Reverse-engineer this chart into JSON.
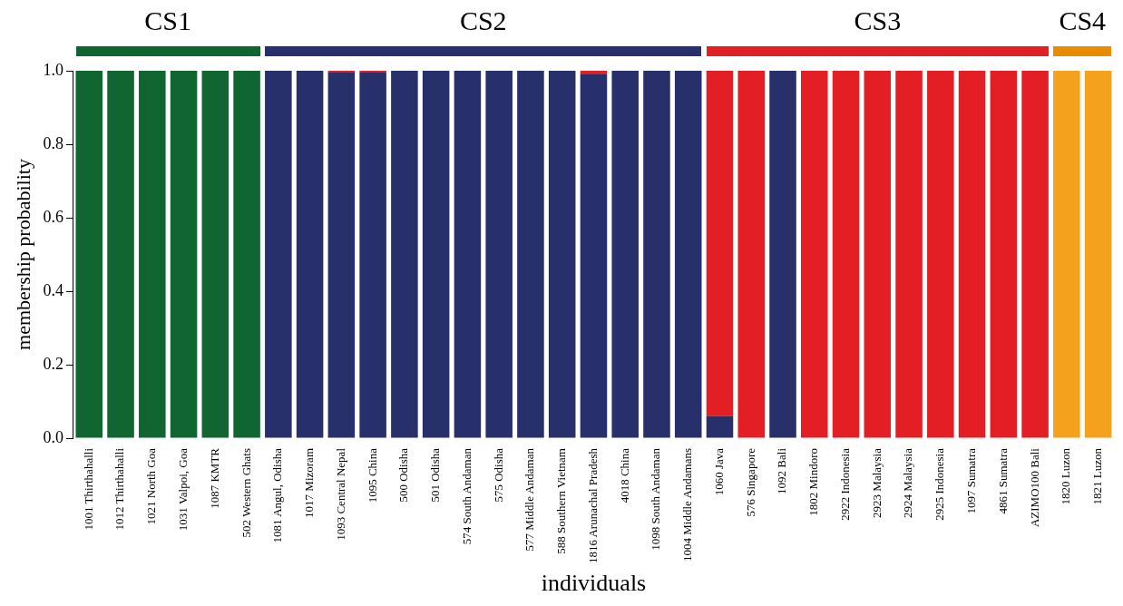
{
  "chart_data": {
    "type": "bar",
    "stacked": true,
    "xlabel": "individuals",
    "ylabel": "membership probability",
    "categories": [
      "1001 Thirthahalli",
      "1012 Thirthahalli",
      "1021 North Goa",
      "1031 Valpoi, Goa",
      "1087 KMTR",
      "502 Western Ghats",
      "1081 Angul, Odisha",
      "1017 Mizoram",
      "1093 Central Nepal",
      "1095 China",
      "500 Odisha",
      "501 Odisha",
      "574 South Andaman",
      "575 Odisha",
      "577 Middle Andaman",
      "588 Southern Vietnam",
      "1816 Arunachal Pradesh",
      "4018 China",
      "1098 South Andaman",
      "1004 Middle Andamans",
      "1060 Java",
      "576 Singapore",
      "1092 Bali",
      "1802 Mindoro",
      "2922 Indonesia",
      "2923 Malaysia",
      "2924 Malaysia",
      "2925 Indonesia",
      "1097 Sumatra",
      "4861 Sumatra",
      "AZIMO100 Bali",
      "1820 Luzon",
      "1821 Luzon"
    ],
    "series": [
      {
        "color": "#116530",
        "values": [
          1,
          1,
          1,
          1,
          1,
          1,
          0,
          0,
          0,
          0,
          0,
          0,
          0,
          0,
          0,
          0,
          0,
          0,
          0,
          0,
          0,
          0,
          0,
          0,
          0,
          0,
          0,
          0,
          0,
          0,
          0,
          0,
          0
        ]
      },
      {
        "color": "#27306b",
        "values": [
          0,
          0,
          0,
          0,
          0,
          0,
          1,
          1,
          0.995,
          0.995,
          1,
          1,
          1,
          1,
          1,
          1,
          0.99,
          1,
          1,
          1,
          0.06,
          0,
          1,
          0,
          0,
          0,
          0,
          0,
          0,
          0,
          0,
          0,
          0
        ]
      },
      {
        "color": "#e31e24",
        "values": [
          0,
          0,
          0,
          0,
          0,
          0,
          0,
          0,
          0.005,
          0.005,
          0,
          0,
          0,
          0,
          0,
          0,
          0.01,
          0,
          0,
          0,
          0.94,
          1,
          0,
          1,
          1,
          1,
          1,
          1,
          1,
          1,
          1,
          0,
          0
        ]
      },
      {
        "color": "#f4a11d",
        "values": [
          0,
          0,
          0,
          0,
          0,
          0,
          0,
          0,
          0,
          0,
          0,
          0,
          0,
          0,
          0,
          0,
          0,
          0,
          0,
          0,
          0,
          0,
          0,
          0,
          0,
          0,
          0,
          0,
          0,
          0,
          0,
          1,
          1
        ]
      }
    ],
    "ylim": [
      0,
      1
    ],
    "yticks": [
      {
        "value": 0,
        "label": "0.0"
      },
      0.2,
      0.4,
      0.6,
      0.8,
      {
        "value": 1,
        "label": "1.0"
      }
    ],
    "grid": false,
    "legend": false,
    "annotations": [
      "CS1",
      "CS2",
      "CS3",
      "CS4"
    ]
  }
}
